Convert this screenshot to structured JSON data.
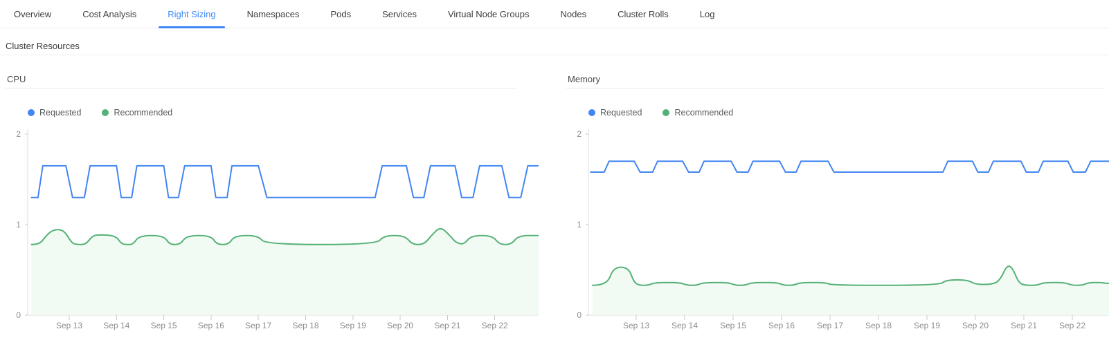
{
  "tabs": {
    "items": [
      {
        "label": "Overview",
        "active": false
      },
      {
        "label": "Cost Analysis",
        "active": false
      },
      {
        "label": "Right Sizing",
        "active": true
      },
      {
        "label": "Namespaces",
        "active": false
      },
      {
        "label": "Pods",
        "active": false
      },
      {
        "label": "Services",
        "active": false
      },
      {
        "label": "Virtual Node Groups",
        "active": false
      },
      {
        "label": "Nodes",
        "active": false
      },
      {
        "label": "Cluster Rolls",
        "active": false
      },
      {
        "label": "Log",
        "active": false
      }
    ]
  },
  "section": {
    "title": "Cluster Resources"
  },
  "legend": {
    "requested": "Requested",
    "recommended": "Recommended"
  },
  "colors": {
    "requested": "#4285f4",
    "recommended": "#53b175",
    "recommended_fill": "#f2faf4",
    "accent": "#3d8af7",
    "axis": "#dcdcdc",
    "tick": "#c9c9c9",
    "tick_label": "#8c8c8c"
  },
  "chart_data": [
    {
      "type": "line",
      "title": "CPU",
      "ylim": [
        0,
        2
      ],
      "y_ticks": [
        0,
        1,
        2
      ],
      "grid": false,
      "legend_position": "top-left",
      "x_ticks": [
        {
          "d": 13,
          "label": "Sep 13"
        },
        {
          "d": 14,
          "label": "Sep 14"
        },
        {
          "d": 15,
          "label": "Sep 15"
        },
        {
          "d": 16,
          "label": "Sep 16"
        },
        {
          "d": 17,
          "label": "Sep 17"
        },
        {
          "d": 18,
          "label": "Sep 18"
        },
        {
          "d": 19,
          "label": "Sep 19"
        },
        {
          "d": 20,
          "label": "Sep 20"
        },
        {
          "d": 21,
          "label": "Sep 21"
        },
        {
          "d": 22,
          "label": "Sep 22"
        }
      ],
      "series": [
        {
          "name": "Recommended",
          "color": "#53b175",
          "fill": true,
          "fill_color": "#f2faf4",
          "smooth": true,
          "points": [
            [
              12.2,
              0.78
            ],
            [
              12.37,
              0.78
            ],
            [
              12.5,
              0.87
            ],
            [
              12.62,
              0.93
            ],
            [
              12.75,
              0.95
            ],
            [
              12.9,
              0.93
            ],
            [
              13.05,
              0.8
            ],
            [
              13.15,
              0.78
            ],
            [
              13.35,
              0.78
            ],
            [
              13.48,
              0.87
            ],
            [
              13.6,
              0.89
            ],
            [
              13.98,
              0.88
            ],
            [
              14.1,
              0.79
            ],
            [
              14.2,
              0.78
            ],
            [
              14.35,
              0.78
            ],
            [
              14.48,
              0.88
            ],
            [
              15.0,
              0.88
            ],
            [
              15.12,
              0.78
            ],
            [
              15.35,
              0.78
            ],
            [
              15.48,
              0.88
            ],
            [
              16.0,
              0.88
            ],
            [
              16.12,
              0.78
            ],
            [
              16.37,
              0.78
            ],
            [
              16.5,
              0.88
            ],
            [
              17.0,
              0.88
            ],
            [
              17.15,
              0.78
            ],
            [
              19.5,
              0.78
            ],
            [
              19.65,
              0.88
            ],
            [
              20.1,
              0.88
            ],
            [
              20.25,
              0.78
            ],
            [
              20.5,
              0.78
            ],
            [
              20.66,
              0.88
            ],
            [
              20.85,
              0.98
            ],
            [
              21.05,
              0.88
            ],
            [
              21.18,
              0.8
            ],
            [
              21.35,
              0.78
            ],
            [
              21.5,
              0.88
            ],
            [
              21.95,
              0.88
            ],
            [
              22.1,
              0.78
            ],
            [
              22.35,
              0.78
            ],
            [
              22.5,
              0.88
            ],
            [
              22.95,
              0.88
            ]
          ]
        },
        {
          "name": "Requested",
          "color": "#4285f4",
          "fill": false,
          "smooth": false,
          "points": [
            [
              12.2,
              1.3
            ],
            [
              12.34,
              1.3
            ],
            [
              12.44,
              1.65
            ],
            [
              12.93,
              1.65
            ],
            [
              13.07,
              1.3
            ],
            [
              13.32,
              1.3
            ],
            [
              13.44,
              1.65
            ],
            [
              14.0,
              1.65
            ],
            [
              14.1,
              1.3
            ],
            [
              14.32,
              1.3
            ],
            [
              14.43,
              1.65
            ],
            [
              15.0,
              1.65
            ],
            [
              15.1,
              1.3
            ],
            [
              15.31,
              1.3
            ],
            [
              15.44,
              1.65
            ],
            [
              16.0,
              1.65
            ],
            [
              16.1,
              1.3
            ],
            [
              16.34,
              1.3
            ],
            [
              16.44,
              1.65
            ],
            [
              17.0,
              1.65
            ],
            [
              17.18,
              1.3
            ],
            [
              19.47,
              1.3
            ],
            [
              19.62,
              1.65
            ],
            [
              20.13,
              1.65
            ],
            [
              20.28,
              1.3
            ],
            [
              20.5,
              1.3
            ],
            [
              20.64,
              1.65
            ],
            [
              21.16,
              1.65
            ],
            [
              21.3,
              1.3
            ],
            [
              21.54,
              1.3
            ],
            [
              21.68,
              1.65
            ],
            [
              22.15,
              1.65
            ],
            [
              22.3,
              1.3
            ],
            [
              22.55,
              1.3
            ],
            [
              22.7,
              1.65
            ],
            [
              22.95,
              1.65
            ]
          ]
        }
      ]
    },
    {
      "type": "line",
      "title": "Memory",
      "ylim": [
        0,
        2
      ],
      "y_ticks": [
        0,
        1,
        2
      ],
      "grid": false,
      "legend_position": "top-left",
      "x_ticks": [
        {
          "d": 13,
          "label": "Sep 13"
        },
        {
          "d": 14,
          "label": "Sep 14"
        },
        {
          "d": 15,
          "label": "Sep 15"
        },
        {
          "d": 16,
          "label": "Sep 16"
        },
        {
          "d": 17,
          "label": "Sep 17"
        },
        {
          "d": 18,
          "label": "Sep 18"
        },
        {
          "d": 19,
          "label": "Sep 19"
        },
        {
          "d": 20,
          "label": "Sep 20"
        },
        {
          "d": 21,
          "label": "Sep 21"
        },
        {
          "d": 22,
          "label": "Sep 22"
        }
      ],
      "series": [
        {
          "name": "Recommended",
          "color": "#53b175",
          "fill": true,
          "fill_color": "#f2faf4",
          "smooth": true,
          "points": [
            [
              12.1,
              0.33
            ],
            [
              12.4,
              0.33
            ],
            [
              12.53,
              0.53
            ],
            [
              12.84,
              0.53
            ],
            [
              12.95,
              0.37
            ],
            [
              13.05,
              0.33
            ],
            [
              13.25,
              0.33
            ],
            [
              13.38,
              0.36
            ],
            [
              13.91,
              0.36
            ],
            [
              14.05,
              0.33
            ],
            [
              14.25,
              0.33
            ],
            [
              14.38,
              0.36
            ],
            [
              14.91,
              0.36
            ],
            [
              15.05,
              0.33
            ],
            [
              15.25,
              0.33
            ],
            [
              15.38,
              0.36
            ],
            [
              15.91,
              0.36
            ],
            [
              16.05,
              0.33
            ],
            [
              16.25,
              0.33
            ],
            [
              16.38,
              0.36
            ],
            [
              16.91,
              0.36
            ],
            [
              17.05,
              0.33
            ],
            [
              19.25,
              0.33
            ],
            [
              19.4,
              0.39
            ],
            [
              19.84,
              0.39
            ],
            [
              20.0,
              0.34
            ],
            [
              20.34,
              0.34
            ],
            [
              20.5,
              0.38
            ],
            [
              20.65,
              0.55
            ],
            [
              20.76,
              0.53
            ],
            [
              20.9,
              0.35
            ],
            [
              21.05,
              0.33
            ],
            [
              21.27,
              0.33
            ],
            [
              21.41,
              0.36
            ],
            [
              21.84,
              0.36
            ],
            [
              22.0,
              0.33
            ],
            [
              22.2,
              0.33
            ],
            [
              22.34,
              0.36
            ],
            [
              22.6,
              0.36
            ],
            [
              22.72,
              0.35
            ],
            [
              22.85,
              0.36
            ],
            [
              23.2,
              0.36
            ]
          ]
        },
        {
          "name": "Requested",
          "color": "#4285f4",
          "fill": false,
          "smooth": false,
          "points": [
            [
              12.06,
              1.58
            ],
            [
              12.34,
              1.58
            ],
            [
              12.44,
              1.7
            ],
            [
              12.96,
              1.7
            ],
            [
              13.08,
              1.58
            ],
            [
              13.34,
              1.58
            ],
            [
              13.44,
              1.7
            ],
            [
              13.96,
              1.7
            ],
            [
              14.08,
              1.58
            ],
            [
              14.3,
              1.58
            ],
            [
              14.4,
              1.7
            ],
            [
              14.96,
              1.7
            ],
            [
              15.08,
              1.58
            ],
            [
              15.31,
              1.58
            ],
            [
              15.41,
              1.7
            ],
            [
              15.96,
              1.7
            ],
            [
              16.08,
              1.58
            ],
            [
              16.3,
              1.58
            ],
            [
              16.4,
              1.7
            ],
            [
              16.96,
              1.7
            ],
            [
              17.08,
              1.58
            ],
            [
              19.33,
              1.58
            ],
            [
              19.43,
              1.7
            ],
            [
              19.94,
              1.7
            ],
            [
              20.05,
              1.58
            ],
            [
              20.27,
              1.58
            ],
            [
              20.37,
              1.7
            ],
            [
              20.94,
              1.7
            ],
            [
              21.05,
              1.58
            ],
            [
              21.3,
              1.58
            ],
            [
              21.4,
              1.7
            ],
            [
              21.91,
              1.7
            ],
            [
              22.02,
              1.58
            ],
            [
              22.27,
              1.58
            ],
            [
              22.38,
              1.7
            ],
            [
              23.2,
              1.7
            ]
          ]
        }
      ]
    }
  ]
}
